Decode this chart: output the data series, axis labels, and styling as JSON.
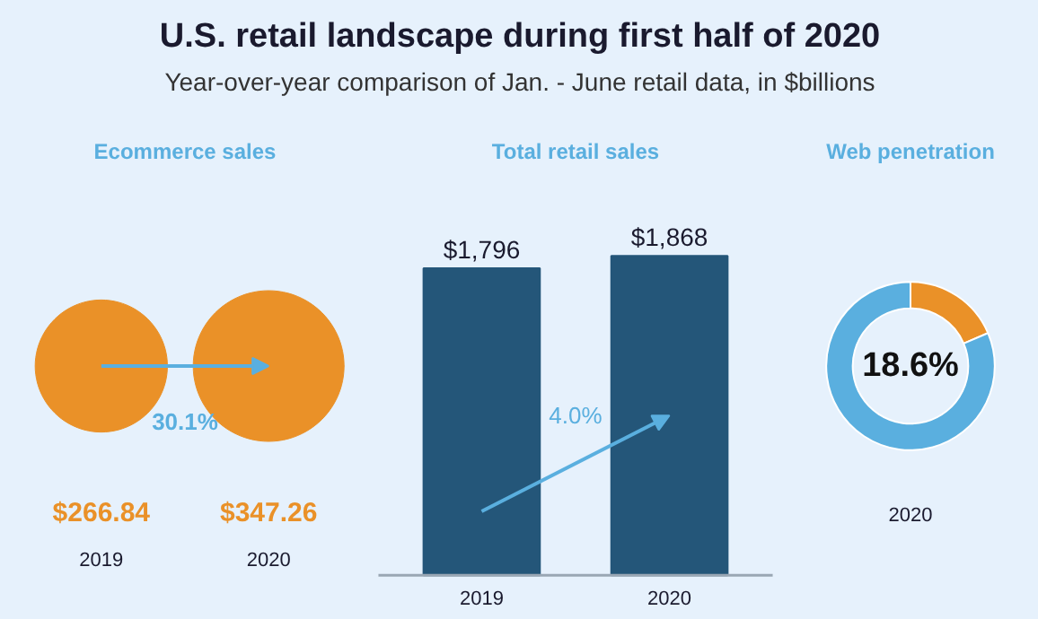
{
  "chart_data": [
    {
      "type": "other",
      "title": "U.S. retail landscape during first half of 2020",
      "subtitle": "Year-over-year comparison of Jan. - June retail data, in $billions"
    },
    {
      "type": "other",
      "title": "Ecommerce sales",
      "categories": [
        "2019",
        "2020"
      ],
      "values": [
        266.84,
        347.26
      ],
      "value_labels": [
        "$266.84",
        "$347.26"
      ],
      "colors": [
        "#ea9128",
        "#ea9128"
      ],
      "annotations": [
        "30.1%"
      ]
    },
    {
      "type": "bar",
      "title": "Total retail sales",
      "categories": [
        "2019",
        "2020"
      ],
      "values": [
        1796,
        1868
      ],
      "value_labels": [
        "$1,796",
        "$1,868"
      ],
      "color": "#245679",
      "annotations": [
        "4.0%"
      ]
    },
    {
      "type": "donut",
      "title": "Web penetration",
      "categories": [
        null,
        null
      ],
      "values": [
        18.6,
        81.4
      ],
      "colors": [
        "#ea9128",
        "#5aafdf"
      ],
      "xlabel": "2020",
      "annotations": [
        "18.6%"
      ]
    }
  ]
}
